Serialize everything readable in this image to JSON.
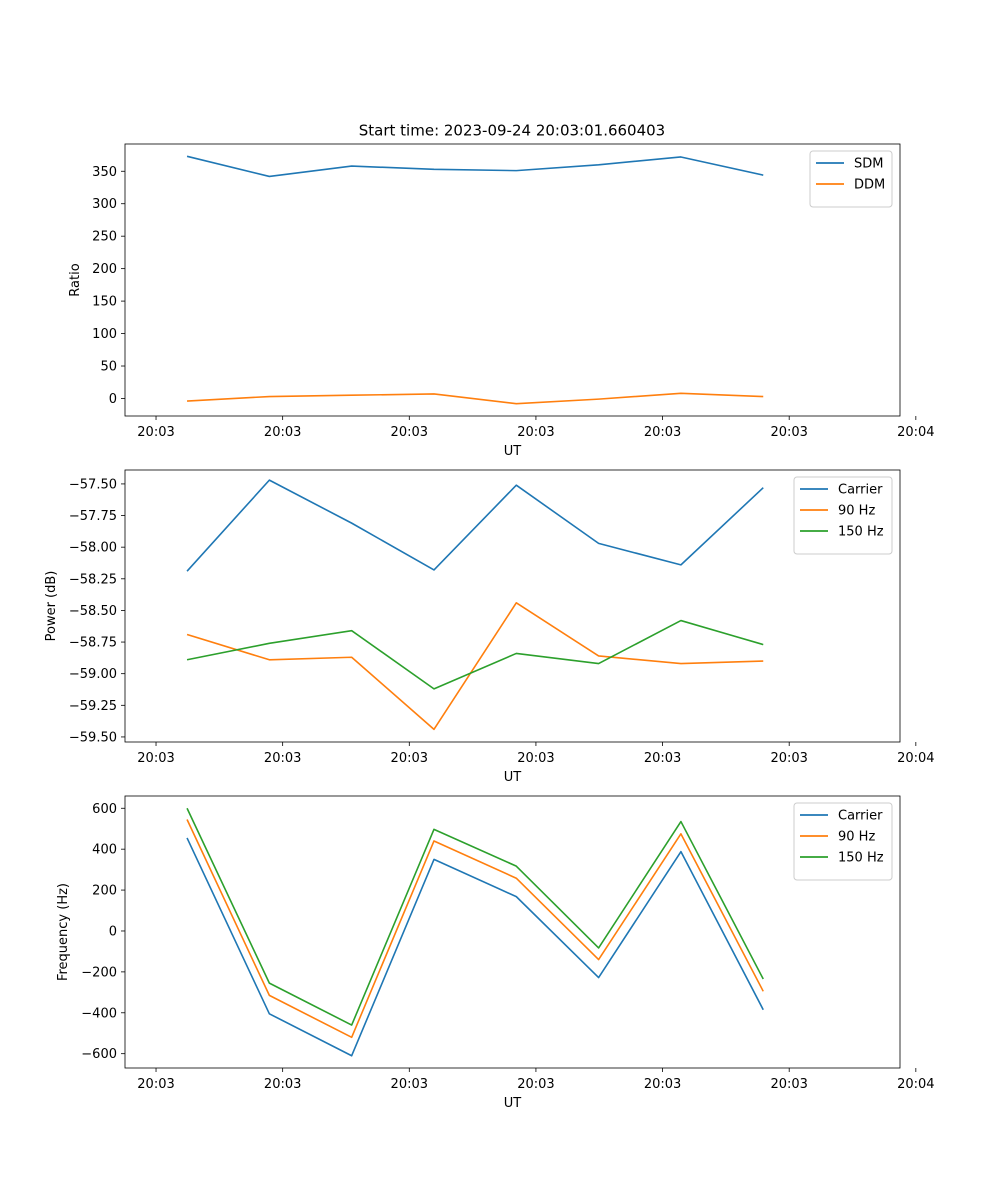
{
  "figure": {
    "title": "Start time: 2023-09-24 20:03:01.660403"
  },
  "chart_data": [
    {
      "type": "line",
      "title": "Start time: 2023-09-24 20:03:01.660403",
      "xlabel": "UT",
      "ylabel": "Ratio",
      "xlim": [
        -0.245,
        5.875
      ],
      "ylim": [
        -27,
        392
      ],
      "x": [
        0.245,
        0.895,
        1.545,
        2.195,
        2.845,
        3.495,
        4.145,
        4.795
      ],
      "xticks": [
        0,
        1,
        2,
        3,
        4,
        5,
        6
      ],
      "xtick_labels": [
        "20:03",
        "20:03",
        "20:03",
        "20:03",
        "20:03",
        "20:03",
        "20:04"
      ],
      "yticks": [
        0,
        50,
        100,
        150,
        200,
        250,
        300,
        350
      ],
      "ytick_labels": [
        "0",
        "50",
        "100",
        "150",
        "200",
        "250",
        "300",
        "350"
      ],
      "legend_position": "top-right",
      "series": [
        {
          "name": "SDM",
          "color": "#1f77b4",
          "values": [
            373,
            342,
            358,
            353,
            351,
            360,
            372,
            344
          ]
        },
        {
          "name": "DDM",
          "color": "#ff7f0e",
          "values": [
            -4,
            3,
            5,
            7,
            -8,
            -1,
            8,
            3
          ]
        }
      ]
    },
    {
      "type": "line",
      "title": "",
      "xlabel": "UT",
      "ylabel": "Power (dB)",
      "xlim": [
        -0.245,
        5.875
      ],
      "ylim": [
        -59.54,
        -57.39
      ],
      "x": [
        0.245,
        0.895,
        1.545,
        2.195,
        2.845,
        3.495,
        4.145,
        4.795
      ],
      "xticks": [
        0,
        1,
        2,
        3,
        4,
        5,
        6
      ],
      "xtick_labels": [
        "20:03",
        "20:03",
        "20:03",
        "20:03",
        "20:03",
        "20:03",
        "20:04"
      ],
      "yticks": [
        -57.5,
        -57.75,
        -58.0,
        -58.25,
        -58.5,
        -58.75,
        -59.0,
        -59.25,
        -59.5
      ],
      "ytick_labels": [
        "−57.50",
        "−57.75",
        "−58.00",
        "−58.25",
        "−58.50",
        "−58.75",
        "−59.00",
        "−59.25",
        "−59.50"
      ],
      "legend_position": "top-right",
      "series": [
        {
          "name": "Carrier",
          "color": "#1f77b4",
          "values": [
            -58.19,
            -57.47,
            -57.81,
            -58.18,
            -57.51,
            -57.97,
            -58.14,
            -57.53
          ]
        },
        {
          "name": "90 Hz",
          "color": "#ff7f0e",
          "values": [
            -58.69,
            -58.89,
            -58.87,
            -59.44,
            -58.44,
            -58.86,
            -58.92,
            -58.9
          ]
        },
        {
          "name": "150 Hz",
          "color": "#2ca02c",
          "values": [
            -58.89,
            -58.76,
            -58.66,
            -59.12,
            -58.84,
            -58.92,
            -58.58,
            -58.77
          ]
        }
      ]
    },
    {
      "type": "line",
      "title": "",
      "xlabel": "UT",
      "ylabel": "Frequency (Hz)",
      "xlim": [
        -0.245,
        5.875
      ],
      "ylim": [
        -670,
        660
      ],
      "x": [
        0.245,
        0.895,
        1.545,
        2.195,
        2.845,
        3.495,
        4.145,
        4.795
      ],
      "xticks": [
        0,
        1,
        2,
        3,
        4,
        5,
        6
      ],
      "xtick_labels": [
        "20:03",
        "20:03",
        "20:03",
        "20:03",
        "20:03",
        "20:03",
        "20:04"
      ],
      "yticks": [
        600,
        400,
        200,
        0,
        -200,
        -400,
        -600
      ],
      "ytick_labels": [
        "600",
        "400",
        "200",
        "0",
        "−200",
        "−400",
        "−600"
      ],
      "legend_position": "top-right",
      "series": [
        {
          "name": "Carrier",
          "color": "#1f77b4",
          "values": [
            455,
            -405,
            -610,
            350,
            168,
            -228,
            388,
            -385
          ]
        },
        {
          "name": "90 Hz",
          "color": "#ff7f0e",
          "values": [
            545,
            -315,
            -520,
            440,
            258,
            -140,
            475,
            -295
          ]
        },
        {
          "name": "150 Hz",
          "color": "#2ca02c",
          "values": [
            600,
            -255,
            -460,
            497,
            317,
            -83,
            535,
            -235
          ]
        }
      ]
    }
  ]
}
